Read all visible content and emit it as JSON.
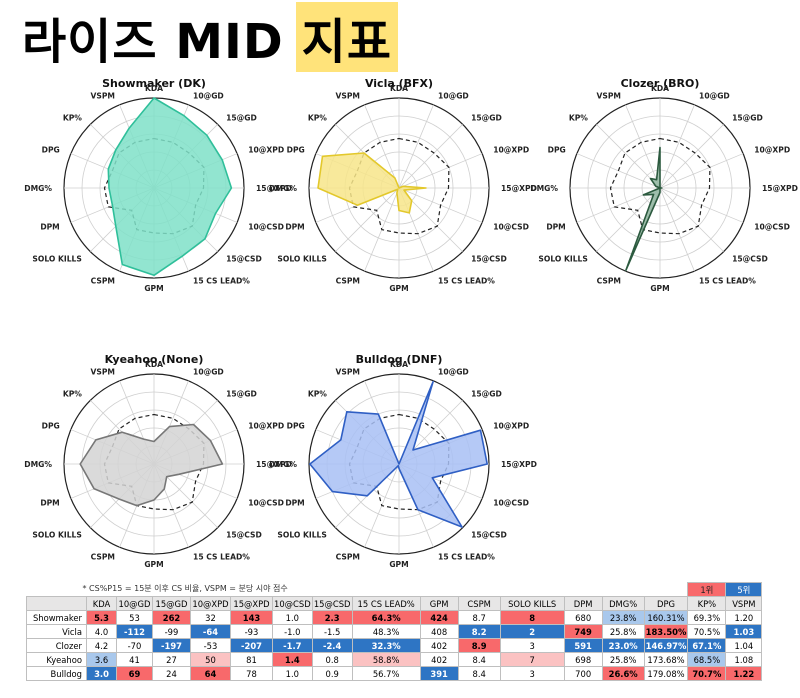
{
  "page": {
    "title_main": "라이즈 MID",
    "title_highlight": "지표"
  },
  "chart_data": {
    "type": "radar",
    "axes": [
      "KDA",
      "10@GD",
      "15@GD",
      "10@XPD",
      "15@XPD",
      "10@CSD",
      "15@CSD",
      "15 CS LEAD%",
      "GPM",
      "CSPM",
      "SOLO KILLS",
      "DPM",
      "DMG%",
      "DPG",
      "KP%",
      "VSPM"
    ],
    "rlim": [
      0,
      1
    ],
    "grid": true,
    "baseline_style": "dashed",
    "players": [
      {
        "title": "Showmaker (DK)",
        "color": "#7fe0c8",
        "stroke": "#2fbf9a",
        "values": [
          1.0,
          0.87,
          0.83,
          0.82,
          0.86,
          0.74,
          0.8,
          0.82,
          0.97,
          0.92,
          0.6,
          0.5,
          0.5,
          0.55,
          0.6,
          0.72
        ]
      },
      {
        "title": "Vicla (BFX)",
        "color": "#f7e58a",
        "stroke": "#e3c82b",
        "values": [
          0.0,
          0.0,
          0.0,
          0.05,
          0.3,
          0.06,
          0.2,
          0.3,
          0.25,
          0.06,
          0.02,
          0.5,
          0.9,
          0.92,
          0.55,
          0.12
        ]
      },
      {
        "title": "Clozer (BRO)",
        "color": "#8fb59f",
        "stroke": "#2c5a3f",
        "values": [
          0.45,
          0.0,
          0.0,
          0.0,
          0.02,
          0.0,
          0.0,
          0.0,
          0.05,
          0.99,
          0.1,
          0.2,
          0.0,
          0.05,
          0.15,
          0.1
        ]
      },
      {
        "title": "Kyeahoo (None)",
        "color": "#d4d4d4",
        "stroke": "#777777",
        "values": [
          0.25,
          0.45,
          0.62,
          0.68,
          0.76,
          0.3,
          0.2,
          0.3,
          0.4,
          0.5,
          0.55,
          0.72,
          0.82,
          0.7,
          0.5,
          0.3
        ]
      },
      {
        "title": "Bulldog (DNF)",
        "color": "#a8bff5",
        "stroke": "#2f5fc4",
        "values": [
          0.0,
          0.99,
          0.22,
          0.98,
          0.98,
          0.4,
          0.99,
          0.55,
          0.05,
          0.02,
          0.5,
          0.8,
          0.99,
          0.7,
          0.82,
          0.6
        ]
      }
    ],
    "baseline": [
      0.55,
      0.55,
      0.55,
      0.6,
      0.55,
      0.5,
      0.6,
      0.55,
      0.5,
      0.5,
      0.35,
      0.55,
      0.55,
      0.5,
      0.55,
      0.55
    ]
  },
  "table": {
    "note": "* CS%P15 = 15분 이후 CS 비율, VSPM = 분당 시야 점수",
    "legend_rank1": "1위",
    "legend_rank5": "5위",
    "headers": [
      "",
      "KDA",
      "10@GD",
      "15@GD",
      "10@XPD",
      "15@XPD",
      "10@CSD",
      "15@CSD",
      "15 CS LEAD%",
      "GPM",
      "CSPM",
      "SOLO KILLS",
      "DPM",
      "DMG%",
      "DPG",
      "KP%",
      "VSPM"
    ],
    "rows": [
      {
        "cells": [
          "Showmaker",
          "5.3",
          "53",
          "262",
          "32",
          "143",
          "1.0",
          "2.3",
          "64.3%",
          "424",
          "8.7",
          "8",
          "680",
          "23.8%",
          "160.31%",
          "69.3%",
          "1.20"
        ],
        "bg": [
          "",
          "#f8696b",
          "#ffffff",
          "#f8696b",
          "#ffffff",
          "#f8696b",
          "#ffffff",
          "#f8696b",
          "#f8696b",
          "#f8696b",
          "#ffffff",
          "#f8696b",
          "#ffffff",
          "#a9c8ec",
          "#a9c8ec",
          "#ffffff",
          "#ffffff"
        ],
        "bold": [
          false,
          true,
          false,
          true,
          false,
          true,
          false,
          true,
          true,
          true,
          false,
          true,
          false,
          false,
          false,
          false,
          false
        ]
      },
      {
        "cells": [
          "Vicla",
          "4.0",
          "-112",
          "-99",
          "-64",
          "-93",
          "-1.0",
          "-1.5",
          "48.3%",
          "408",
          "8.2",
          "2",
          "749",
          "25.8%",
          "183.50%",
          "70.5%",
          "1.03"
        ],
        "bg": [
          "",
          "#ffffff",
          "#2e75c4",
          "#ffffff",
          "#2e75c4",
          "#ffffff",
          "#ffffff",
          "#ffffff",
          "#ffffff",
          "#ffffff",
          "#2e75c4",
          "#2e75c4",
          "#f8696b",
          "#ffffff",
          "#f8696b",
          "#ffffff",
          "#2e75c4"
        ],
        "bold": [
          false,
          false,
          true,
          false,
          true,
          false,
          false,
          false,
          false,
          false,
          true,
          true,
          true,
          false,
          true,
          false,
          true
        ]
      },
      {
        "cells": [
          "Clozer",
          "4.2",
          "-70",
          "-197",
          "-53",
          "-207",
          "-1.7",
          "-2.4",
          "32.3%",
          "402",
          "8.9",
          "3",
          "591",
          "23.0%",
          "146.97%",
          "67.1%",
          "1.04"
        ],
        "bg": [
          "",
          "#ffffff",
          "#ffffff",
          "#2e75c4",
          "#ffffff",
          "#2e75c4",
          "#2e75c4",
          "#2e75c4",
          "#2e75c4",
          "#ffffff",
          "#f8696b",
          "#ffffff",
          "#2e75c4",
          "#2e75c4",
          "#2e75c4",
          "#2e75c4",
          "#ffffff"
        ],
        "bold": [
          false,
          false,
          false,
          true,
          false,
          true,
          true,
          true,
          true,
          false,
          true,
          false,
          true,
          true,
          true,
          true,
          false
        ]
      },
      {
        "cells": [
          "Kyeahoo",
          "3.6",
          "41",
          "27",
          "50",
          "81",
          "1.4",
          "0.8",
          "58.8%",
          "402",
          "8.4",
          "7",
          "698",
          "25.8%",
          "173.68%",
          "68.5%",
          "1.08"
        ],
        "bg": [
          "",
          "#a9c8ec",
          "#ffffff",
          "#ffffff",
          "#fbc2c2",
          "#ffffff",
          "#f8696b",
          "#ffffff",
          "#fbc2c2",
          "#ffffff",
          "#ffffff",
          "#fbc2c2",
          "#ffffff",
          "#ffffff",
          "#ffffff",
          "#a9c8ec",
          "#ffffff"
        ],
        "bold": [
          false,
          false,
          false,
          false,
          false,
          false,
          true,
          false,
          false,
          false,
          false,
          false,
          false,
          false,
          false,
          false,
          false
        ]
      },
      {
        "cells": [
          "Bulldog",
          "3.0",
          "69",
          "24",
          "64",
          "78",
          "1.0",
          "0.9",
          "56.7%",
          "391",
          "8.4",
          "3",
          "700",
          "26.6%",
          "179.08%",
          "70.7%",
          "1.22"
        ],
        "bg": [
          "",
          "#2e75c4",
          "#f8696b",
          "#ffffff",
          "#f8696b",
          "#ffffff",
          "#ffffff",
          "#ffffff",
          "#ffffff",
          "#2e75c4",
          "#ffffff",
          "#ffffff",
          "#ffffff",
          "#f8696b",
          "#ffffff",
          "#f8696b",
          "#f8696b"
        ],
        "bold": [
          false,
          true,
          true,
          false,
          true,
          false,
          false,
          false,
          false,
          true,
          false,
          false,
          false,
          true,
          false,
          true,
          true
        ]
      }
    ]
  }
}
